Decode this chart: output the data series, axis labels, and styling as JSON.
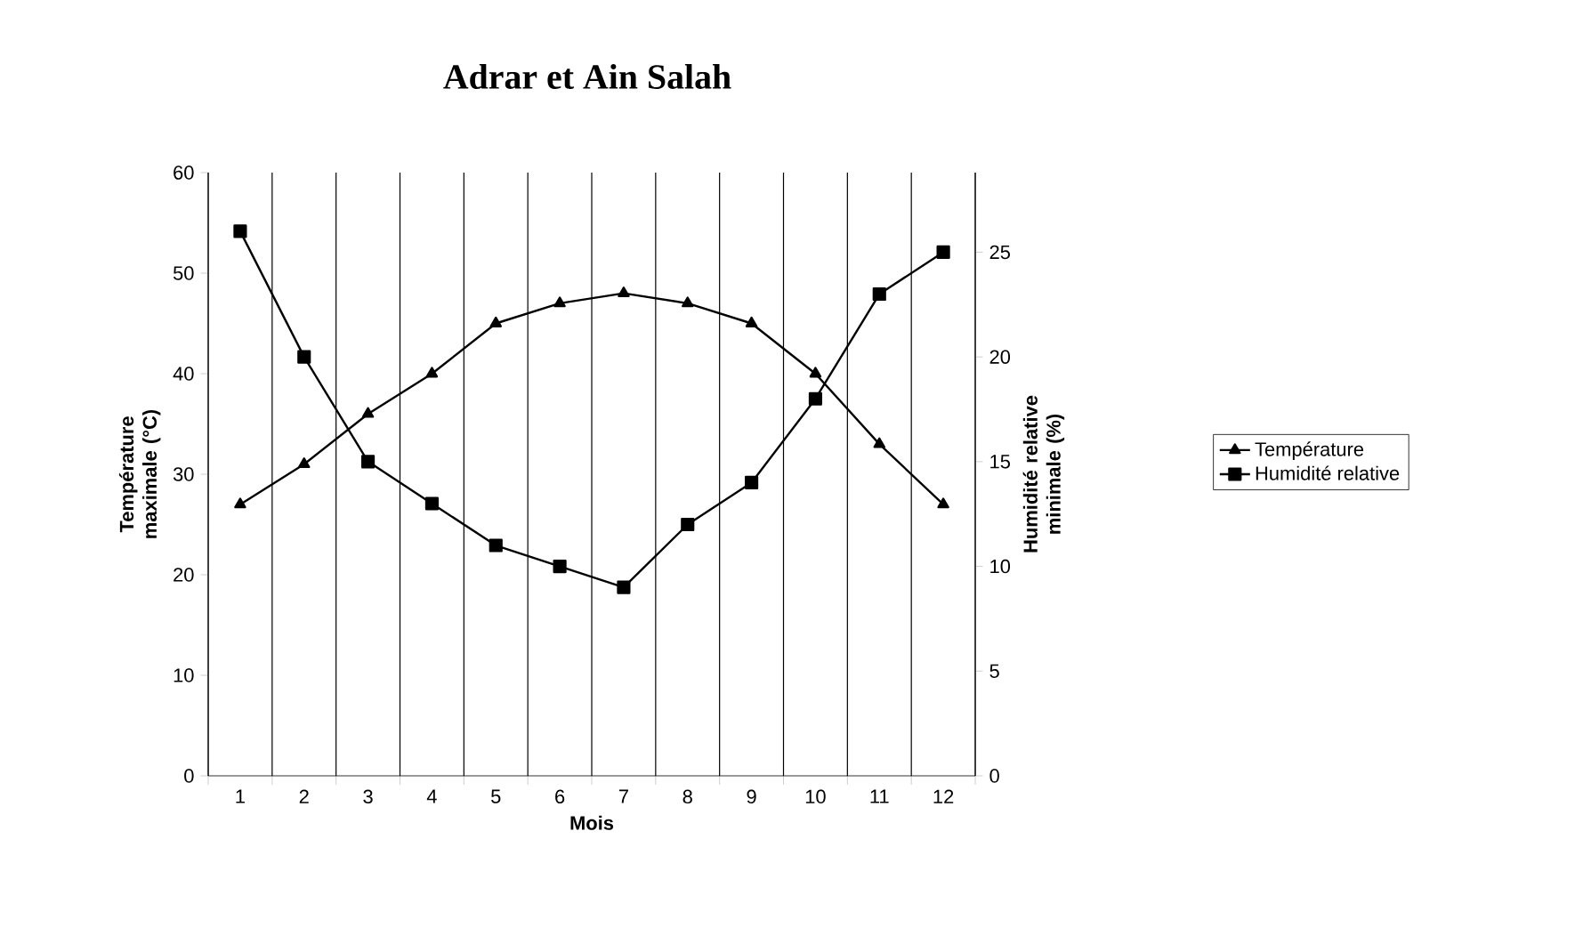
{
  "chart_data": {
    "type": "line",
    "title": "Adrar et Ain Salah",
    "xlabel": "Mois",
    "ylabel": "Température maximale (°C)",
    "y2label": "Humidité relative minimale (%)",
    "categories": [
      "1",
      "2",
      "3",
      "4",
      "5",
      "6",
      "7",
      "8",
      "9",
      "10",
      "11",
      "12"
    ],
    "series": [
      {
        "name": "Température",
        "color": "#000000",
        "marker": "triangle",
        "values": [
          27,
          31,
          36,
          40,
          45,
          47,
          48,
          47,
          45,
          40,
          33,
          27
        ]
      },
      {
        "name": "Humidité relative",
        "color": "#000000",
        "marker": "square",
        "axis": "y2",
        "values": [
          26,
          20,
          15,
          13,
          11,
          10,
          9,
          12,
          14,
          18,
          23,
          25
        ]
      }
    ],
    "ylim": [
      0,
      60
    ],
    "yticks": [
      0,
      10,
      20,
      30,
      40,
      50,
      60
    ],
    "y2lim": [
      0,
      28.8
    ],
    "y2ticks": [
      0,
      5,
      10,
      15,
      20,
      25
    ],
    "grid": "x",
    "legend": "right",
    "line_style": "solid"
  }
}
